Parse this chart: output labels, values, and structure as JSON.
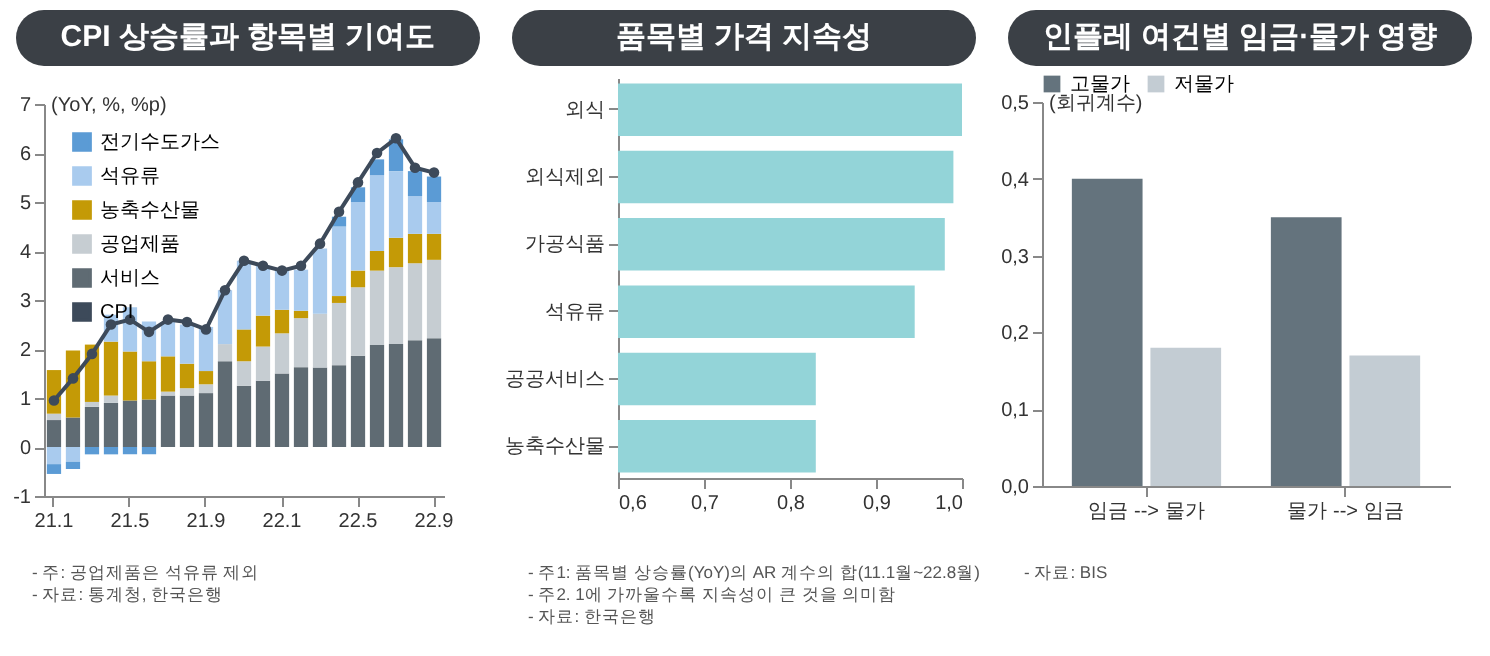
{
  "chart_data": [
    {
      "type": "bar",
      "title": "CPI 상승률과 항목별 기여도",
      "ylabel": "(YoY, %, %p)",
      "stacked": true,
      "legend": "top left",
      "marker": "circle",
      "categories": [
        "21.1",
        null,
        null,
        null,
        "21.5",
        null,
        null,
        null,
        "21.9",
        null,
        null,
        null,
        "22.1",
        null,
        null,
        null,
        "22.5",
        null,
        null,
        null,
        "22.9"
      ],
      "ylim": [
        -1,
        7
      ],
      "yticks": [
        -1,
        0,
        1,
        2,
        3,
        4,
        5,
        6,
        7
      ],
      "series": [
        {
          "name": "서비스",
          "color": "#5f6b73",
          "values": [
            0.55,
            0.6,
            0.82,
            0.9,
            0.95,
            0.97,
            1.05,
            1.05,
            1.1,
            1.75,
            1.25,
            1.35,
            1.5,
            1.63,
            1.62,
            1.67,
            1.86,
            2.08,
            2.1,
            2.18,
            2.22
          ]
        },
        {
          "name": "공업제품",
          "color": "#c6cdd2",
          "values": [
            0.13,
            null,
            0.1,
            0.15,
            null,
            null,
            0.08,
            0.15,
            0.18,
            0.35,
            0.5,
            0.7,
            0.82,
            1.0,
            1.1,
            1.27,
            1.4,
            1.52,
            1.57,
            1.57,
            1.6
          ]
        },
        {
          "name": "농축수산물",
          "color": "#c49a06",
          "values": [
            0.89,
            1.37,
            1.17,
            1.1,
            1.0,
            0.78,
            0.72,
            0.5,
            0.27,
            0.0,
            0.65,
            0.63,
            0.48,
            0.15,
            0.0,
            0.14,
            0.34,
            0.4,
            0.6,
            0.6,
            0.53
          ]
        },
        {
          "name": "석유류",
          "color": "#a9cbee",
          "values": [
            -0.35,
            -0.3,
            0.0,
            0.55,
            0.9,
            0.81,
            0.7,
            0.8,
            0.9,
            1.1,
            1.4,
            1.02,
            0.8,
            0.84,
            1.33,
            1.42,
            1.4,
            1.55,
            1.36,
            0.77,
            0.65
          ]
        },
        {
          "name": "전기수도가스",
          "color": "#5b9bd5",
          "values": [
            -0.2,
            -0.15,
            -0.15,
            -0.15,
            -0.15,
            -0.15,
            0.0,
            0.0,
            0.0,
            0.0,
            0.0,
            0.0,
            0.0,
            0.0,
            null,
            0.2,
            0.3,
            0.32,
            0.65,
            0.51,
            0.52
          ]
        },
        {
          "name": "CPI",
          "type": "line",
          "color": "#3d4a5a",
          "values": [
            0.95,
            1.4,
            1.9,
            2.5,
            2.6,
            2.35,
            2.6,
            2.55,
            2.4,
            3.2,
            3.8,
            3.7,
            3.6,
            3.7,
            4.15,
            4.8,
            5.4,
            6.0,
            6.3,
            5.7,
            5.6
          ]
        }
      ],
      "annotations": [
        "- 주: 공업제품은 석유류 제외",
        "- 자료: 통계청, 한국은행"
      ]
    },
    {
      "type": "bar",
      "title": "품목별 가격 지속성",
      "orientation": "horizontal",
      "categories": [
        "외식",
        "외식제외",
        "가공식품",
        "석유류",
        "공공서비스",
        "농축수산물"
      ],
      "xlim": [
        0.6,
        1.0
      ],
      "xticks": [
        {
          "value": 0.6,
          "label": "0,6"
        },
        {
          "value": 0.7,
          "label": "0,7"
        },
        {
          "value": 0.8,
          "label": "0,8"
        },
        {
          "value": 0.9,
          "label": "0,9"
        },
        {
          "value": 1.0,
          "label": "1,0"
        }
      ],
      "series": [
        {
          "color": "#93d4d8",
          "values": [
            1.0,
            0.99,
            0.98,
            0.945,
            0.83,
            0.83
          ]
        }
      ],
      "annotations": [
        "- 주1: 품목별 상승률(YoY)의 AR 계수의 합(11.1월~22.8월)",
        "- 주2. 1에 가까울수록 지속성이 큰 것을 의미함",
        "- 자료: 한국은행"
      ]
    },
    {
      "type": "bar",
      "title": "인플레 여건별 임금·물가 영향",
      "ylabel": "(회귀계수)",
      "legend": "top",
      "categories": [
        "임금 --> 물가",
        "물가 --> 임금"
      ],
      "ylim": [
        0,
        0.5
      ],
      "yticks": [
        {
          "value": 0,
          "label": "0,0"
        },
        {
          "value": 0.1,
          "label": "0,1"
        },
        {
          "value": 0.2,
          "label": "0,2"
        },
        {
          "value": 0.3,
          "label": "0,3"
        },
        {
          "value": 0.4,
          "label": "0,4"
        },
        {
          "value": 0.5,
          "label": "0,5"
        }
      ],
      "series": [
        {
          "name": "고물가",
          "color": "#64737d",
          "values": [
            0.4,
            0.35
          ]
        },
        {
          "name": "저물가",
          "color": "#c3ccd3",
          "values": [
            0.18,
            0.17
          ]
        }
      ],
      "annotations": [
        "- 자료: BIS"
      ]
    }
  ]
}
